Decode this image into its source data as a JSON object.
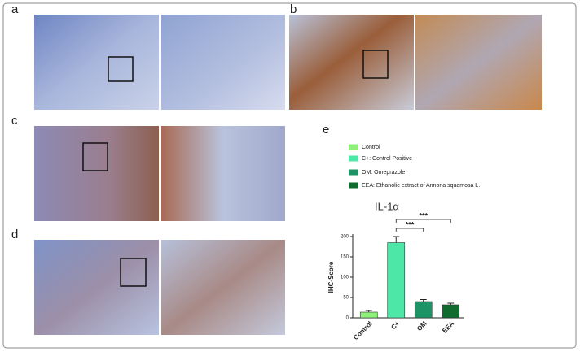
{
  "panels": [
    "a",
    "b",
    "c",
    "d"
  ],
  "chart_data": {
    "type": "bar",
    "panel": "e",
    "title": "IL-1α",
    "y_label": "IHC-Score",
    "categories": [
      "Control",
      "C+",
      "OM",
      "EEA"
    ],
    "values": [
      14,
      185,
      40,
      32
    ],
    "errors": [
      4,
      15,
      5,
      4
    ],
    "colors": [
      "#8ef07a",
      "#4de8a8",
      "#1e9466",
      "#0f6b2e"
    ],
    "legend_labels": [
      "Control",
      "C+: Control Positive",
      "OM: Omeprazole",
      "EEA: Ethanolic extract of Annona squamosa L."
    ],
    "ylim": [
      0,
      200
    ],
    "yticks": [
      0,
      50,
      100,
      150,
      200
    ],
    "significance": [
      {
        "pair": [
          "C+",
          "OM"
        ],
        "label": "***"
      },
      {
        "pair": [
          "C+",
          "EEA"
        ],
        "label": "***"
      }
    ]
  }
}
